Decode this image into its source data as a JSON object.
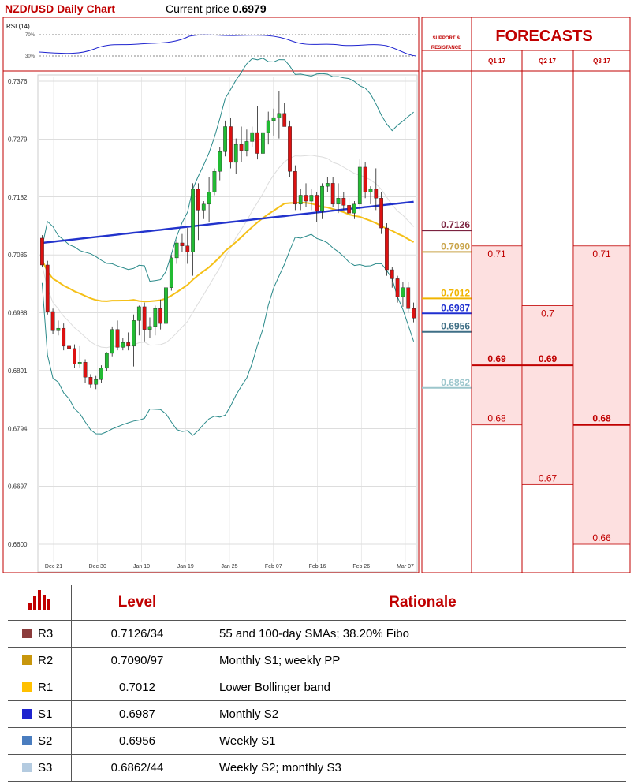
{
  "header": {
    "title": "NZD/USD Daily Chart",
    "current_label": "Current price",
    "current_value": "0.6979"
  },
  "rsi": {
    "label": "RSI (14)",
    "levels": [
      "70%",
      "30%"
    ]
  },
  "panel": {
    "support_resistance_label": [
      "SUPPORT &",
      "RESISTANCE"
    ],
    "forecasts_label": "FORECASTS",
    "quarters": [
      "Q1 17",
      "Q2 17",
      "Q3 17"
    ]
  },
  "chart_data": {
    "type": "candlestick",
    "title": "NZD/USD Daily Chart",
    "ylim": [
      0.66,
      0.7376
    ],
    "y_ticks": [
      "0.7376",
      "0.7279",
      "0.7182",
      "0.7085",
      "0.6988",
      "0.6891",
      "0.6794",
      "0.6697",
      "0.6600"
    ],
    "x_ticks": [
      "Dec 21",
      "Dec 30",
      "Jan 10",
      "Jan 19",
      "Jan 25",
      "Feb 07",
      "Feb 16",
      "Feb 26",
      "Mar 07"
    ],
    "candles_ohlc": [
      [
        0.7113,
        0.7118,
        0.7065,
        0.7068
      ],
      [
        0.7068,
        0.7075,
        0.6985,
        0.699
      ],
      [
        0.699,
        0.6995,
        0.6952,
        0.6958
      ],
      [
        0.6958,
        0.6975,
        0.695,
        0.6962
      ],
      [
        0.6962,
        0.697,
        0.6925,
        0.6932
      ],
      [
        0.6932,
        0.6945,
        0.6922,
        0.6928
      ],
      [
        0.6928,
        0.6935,
        0.6895,
        0.6902
      ],
      [
        0.6902,
        0.6932,
        0.6895,
        0.6905
      ],
      [
        0.6905,
        0.691,
        0.687,
        0.688
      ],
      [
        0.688,
        0.6885,
        0.6862,
        0.6868
      ],
      [
        0.6868,
        0.6882,
        0.686,
        0.6876
      ],
      [
        0.6876,
        0.69,
        0.687,
        0.6895
      ],
      [
        0.6895,
        0.6922,
        0.689,
        0.692
      ],
      [
        0.692,
        0.6965,
        0.6915,
        0.696
      ],
      [
        0.696,
        0.6975,
        0.6925,
        0.693
      ],
      [
        0.693,
        0.6945,
        0.6925,
        0.6938
      ],
      [
        0.6938,
        0.6955,
        0.6925,
        0.6932
      ],
      [
        0.6932,
        0.6985,
        0.6898,
        0.6975
      ],
      [
        0.6975,
        0.7,
        0.695,
        0.6998
      ],
      [
        0.6998,
        0.7005,
        0.694,
        0.696
      ],
      [
        0.696,
        0.698,
        0.6945,
        0.6965
      ],
      [
        0.6965,
        0.7,
        0.695,
        0.6995
      ],
      [
        0.6995,
        0.701,
        0.696,
        0.697
      ],
      [
        0.697,
        0.7035,
        0.696,
        0.703
      ],
      [
        0.703,
        0.7085,
        0.7025,
        0.708
      ],
      [
        0.708,
        0.711,
        0.707,
        0.7105
      ],
      [
        0.7105,
        0.712,
        0.709,
        0.71
      ],
      [
        0.71,
        0.713,
        0.707,
        0.709
      ],
      [
        0.709,
        0.7205,
        0.705,
        0.7195
      ],
      [
        0.7195,
        0.7205,
        0.711,
        0.716
      ],
      [
        0.716,
        0.7175,
        0.7145,
        0.717
      ],
      [
        0.717,
        0.7215,
        0.714,
        0.719
      ],
      [
        0.719,
        0.723,
        0.7185,
        0.7225
      ],
      [
        0.7225,
        0.7265,
        0.721,
        0.7258
      ],
      [
        0.7258,
        0.731,
        0.725,
        0.73
      ],
      [
        0.73,
        0.7315,
        0.723,
        0.724
      ],
      [
        0.724,
        0.728,
        0.722,
        0.727
      ],
      [
        0.727,
        0.73,
        0.724,
        0.726
      ],
      [
        0.726,
        0.7295,
        0.725,
        0.7275
      ],
      [
        0.7275,
        0.73,
        0.7265,
        0.729
      ],
      [
        0.729,
        0.7335,
        0.7245,
        0.7255
      ],
      [
        0.7255,
        0.73,
        0.723,
        0.729
      ],
      [
        0.729,
        0.7325,
        0.727,
        0.731
      ],
      [
        0.731,
        0.733,
        0.7285,
        0.7315
      ],
      [
        0.7315,
        0.736,
        0.728,
        0.7322
      ],
      [
        0.7322,
        0.734,
        0.73,
        0.73
      ],
      [
        0.73,
        0.731,
        0.7215,
        0.7225
      ],
      [
        0.7225,
        0.7235,
        0.716,
        0.717
      ],
      [
        0.717,
        0.7195,
        0.716,
        0.7185
      ],
      [
        0.7185,
        0.7205,
        0.7165,
        0.7175
      ],
      [
        0.7175,
        0.7195,
        0.716,
        0.7185
      ],
      [
        0.7185,
        0.719,
        0.714,
        0.7158
      ],
      [
        0.7158,
        0.7205,
        0.7145,
        0.72
      ],
      [
        0.72,
        0.7215,
        0.719,
        0.7205
      ],
      [
        0.7205,
        0.7215,
        0.7165,
        0.717
      ],
      [
        0.717,
        0.7205,
        0.7155,
        0.718
      ],
      [
        0.718,
        0.719,
        0.716,
        0.7168
      ],
      [
        0.7168,
        0.718,
        0.715,
        0.7155
      ],
      [
        0.7155,
        0.7175,
        0.7145,
        0.717
      ],
      [
        0.717,
        0.7245,
        0.716,
        0.7232
      ],
      [
        0.7232,
        0.724,
        0.718,
        0.719
      ],
      [
        0.719,
        0.72,
        0.717,
        0.7195
      ],
      [
        0.7195,
        0.723,
        0.716,
        0.718
      ],
      [
        0.718,
        0.719,
        0.712,
        0.713
      ],
      [
        0.713,
        0.7138,
        0.705,
        0.706
      ],
      [
        0.706,
        0.7065,
        0.703,
        0.7045
      ],
      [
        0.7045,
        0.705,
        0.7005,
        0.7015
      ],
      [
        0.7015,
        0.704,
        0.6998,
        0.703
      ],
      [
        0.703,
        0.704,
        0.6988,
        0.6995
      ],
      [
        0.6995,
        0.7005,
        0.6972,
        0.6979
      ]
    ],
    "overlays": [
      "Bollinger bands",
      "55-day SMA",
      "100-day SMA",
      "Bollinger middle band"
    ],
    "support_resistance": [
      {
        "value": "0.7126",
        "color": "#7b2340"
      },
      {
        "value": "0.7090",
        "color": "#c9a44a"
      },
      {
        "value": "0.7012",
        "color": "#f0b400"
      },
      {
        "value": "0.6987",
        "color": "#1f2fd0"
      },
      {
        "value": "0.6956",
        "color": "#3f6f86"
      },
      {
        "value": "0.6862",
        "color": "#9cc6cc"
      }
    ],
    "forecasts": [
      {
        "quarter": "Q1 17",
        "high": "0.71",
        "mid": "0.69",
        "low": "0.68",
        "high_v": 0.71,
        "mid_v": 0.69,
        "low_v": 0.68
      },
      {
        "quarter": "Q2 17",
        "high": "0.7",
        "mid": "0.69",
        "low": "0.67",
        "high_v": 0.7,
        "mid_v": 0.69,
        "low_v": 0.67
      },
      {
        "quarter": "Q3 17",
        "high": "0.71",
        "mid": "0.68",
        "low": "0.66",
        "high_v": 0.71,
        "mid_v": 0.68,
        "low_v": 0.66
      }
    ]
  },
  "table": {
    "headers": [
      "Level",
      "Rationale"
    ],
    "rows": [
      {
        "name": "R3",
        "level": "0.7126/34",
        "rationale": "55 and 100-day SMAs; 38.20% Fibo",
        "color": "#8b3b3b"
      },
      {
        "name": "R2",
        "level": "0.7090/97",
        "rationale": "Monthly S1; weekly PP",
        "color": "#c8960c"
      },
      {
        "name": "R1",
        "level": "0.7012",
        "rationale": "Lower Bollinger band",
        "color": "#ffc000"
      },
      {
        "name": "S1",
        "level": "0.6987",
        "rationale": "Monthly S2",
        "color": "#1f24cf"
      },
      {
        "name": "S2",
        "level": "0.6956",
        "rationale": "Weekly S1",
        "color": "#4a7dbf"
      },
      {
        "name": "S3",
        "level": "0.6862/44",
        "rationale": "Weekly S2; monthly S3",
        "color": "#b4cbe0"
      }
    ]
  }
}
